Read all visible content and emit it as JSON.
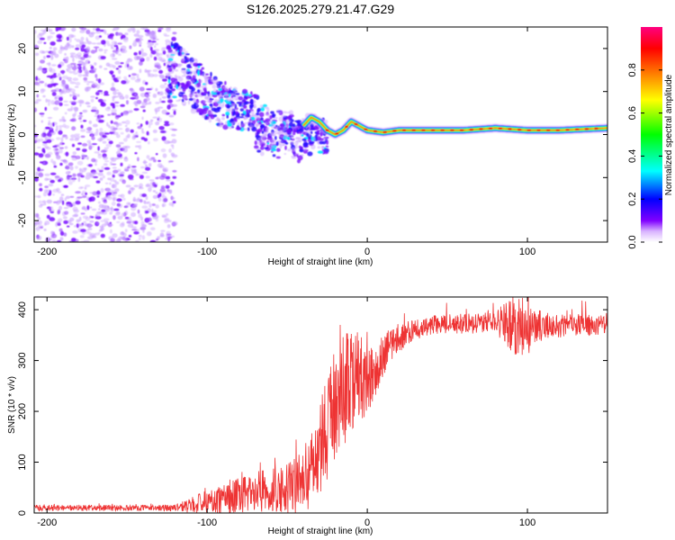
{
  "title": "S126.2025.279.21.47.G29",
  "chart_data": [
    {
      "type": "heatmap",
      "name": "spectrogram",
      "xlabel": "Height of straight line (km)",
      "ylabel": "Frequency (Hz)",
      "xlim": [
        -208,
        150
      ],
      "ylim": [
        -25,
        25
      ],
      "xticks": [
        -200,
        -100,
        0,
        100
      ],
      "yticks": [
        -20,
        -10,
        0,
        10,
        20
      ],
      "colorbar": {
        "label": "Normalized spectral amplitude",
        "range": [
          0,
          1
        ],
        "ticks": [
          0.0,
          0.2,
          0.4,
          0.6,
          0.8
        ],
        "colors": [
          "#ffffff",
          "#d9b3ff",
          "#8000ff",
          "#0000ff",
          "#00ffff",
          "#00ff00",
          "#ffff00",
          "#ff8000",
          "#ff0000",
          "#ff0080"
        ]
      },
      "ridge": {
        "x": [
          -120,
          -110,
          -100,
          -90,
          -80,
          -70,
          -60,
          -50,
          -40,
          -35,
          -30,
          -25,
          -20,
          -15,
          -10,
          -5,
          0,
          10,
          20,
          40,
          60,
          80,
          100,
          120,
          150
        ],
        "y": [
          15,
          12,
          9,
          7,
          6,
          5,
          4,
          3,
          2,
          4,
          3,
          1,
          0,
          1,
          3,
          2,
          1,
          0.5,
          1,
          1,
          1,
          1.5,
          1,
          1,
          1.5
        ]
      },
      "noise_region": {
        "x": [
          -208,
          -120
        ],
        "y": [
          -25,
          25
        ]
      }
    },
    {
      "type": "line",
      "name": "snr",
      "xlabel": "Height of straight line (km)",
      "ylabel": "SNR (10 * v/v)",
      "xlim": [
        -208,
        150
      ],
      "ylim": [
        0,
        425
      ],
      "xticks": [
        -200,
        -100,
        0,
        100
      ],
      "yticks": [
        0,
        100,
        200,
        300,
        400
      ],
      "color": "#ee3333",
      "envelope": {
        "x": [
          -208,
          -180,
          -150,
          -120,
          -110,
          -100,
          -90,
          -80,
          -70,
          -60,
          -50,
          -40,
          -35,
          -30,
          -25,
          -20,
          -15,
          -10,
          -5,
          0,
          5,
          10,
          15,
          20,
          30,
          40,
          60,
          80,
          90,
          100,
          110,
          130,
          150
        ],
        "y": [
          10,
          10,
          10,
          10,
          15,
          20,
          25,
          35,
          40,
          45,
          50,
          60,
          80,
          120,
          170,
          210,
          240,
          260,
          270,
          250,
          280,
          310,
          330,
          345,
          360,
          370,
          372,
          375,
          372,
          365,
          368,
          370,
          370
        ]
      },
      "spread": {
        "x": [
          -208,
          -120,
          -100,
          -60,
          -40,
          -30,
          -20,
          -10,
          0,
          10,
          30,
          80,
          90,
          100,
          110,
          150
        ],
        "y": [
          6,
          6,
          25,
          45,
          60,
          90,
          120,
          100,
          70,
          40,
          20,
          20,
          60,
          60,
          25,
          20
        ]
      }
    }
  ]
}
